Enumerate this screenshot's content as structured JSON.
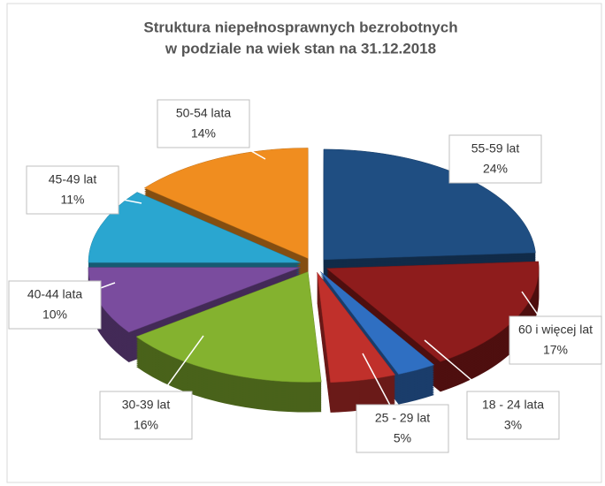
{
  "chart_data": {
    "type": "pie3d",
    "title": [
      "Struktura niepełnosprawnych bezrobotnych",
      "w podziale na wiek stan na 31.12.2018"
    ],
    "categories": [
      "55-59 lat",
      "60 i więcej lat",
      "18 - 24 lata",
      "25 - 29 lat",
      "30-39 lat",
      "40-44 lata",
      "45-49 lat",
      "50-54 lata"
    ],
    "values": [
      24,
      17,
      3,
      5,
      16,
      10,
      11,
      14
    ],
    "value_labels": [
      "24%",
      "17%",
      "3%",
      "5%",
      "16%",
      "10%",
      "11%",
      "14%"
    ],
    "colors": [
      "#1f4e82",
      "#8e1c1c",
      "#2f6fc2",
      "#c0302b",
      "#84b22f",
      "#7a4c9e",
      "#2aa6d0",
      "#f08d1f"
    ]
  }
}
